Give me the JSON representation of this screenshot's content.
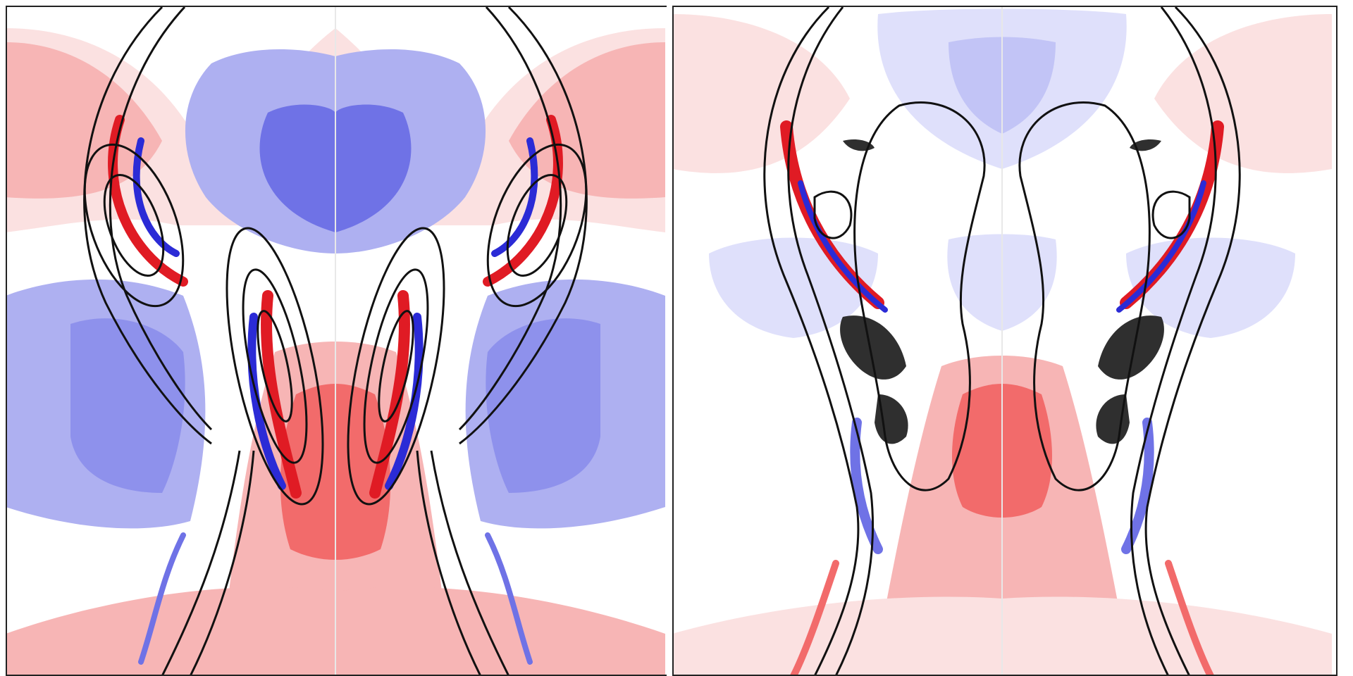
{
  "figure": {
    "panels": [
      {
        "id": "left",
        "caption": ""
      },
      {
        "id": "right",
        "caption": ""
      }
    ]
  },
  "colors": {
    "positive_strong": "#e01b24",
    "positive_medium": "#f26b6b",
    "positive_light": "#f7b5b5",
    "positive_faint": "#fbe1e1",
    "negative_strong": "#2b2bd6",
    "negative_medium": "#6f72e6",
    "negative_light": "#aeb0f1",
    "negative_faint": "#dfe0fb",
    "contour": "#111111",
    "saturated": "#2f2f2f"
  }
}
